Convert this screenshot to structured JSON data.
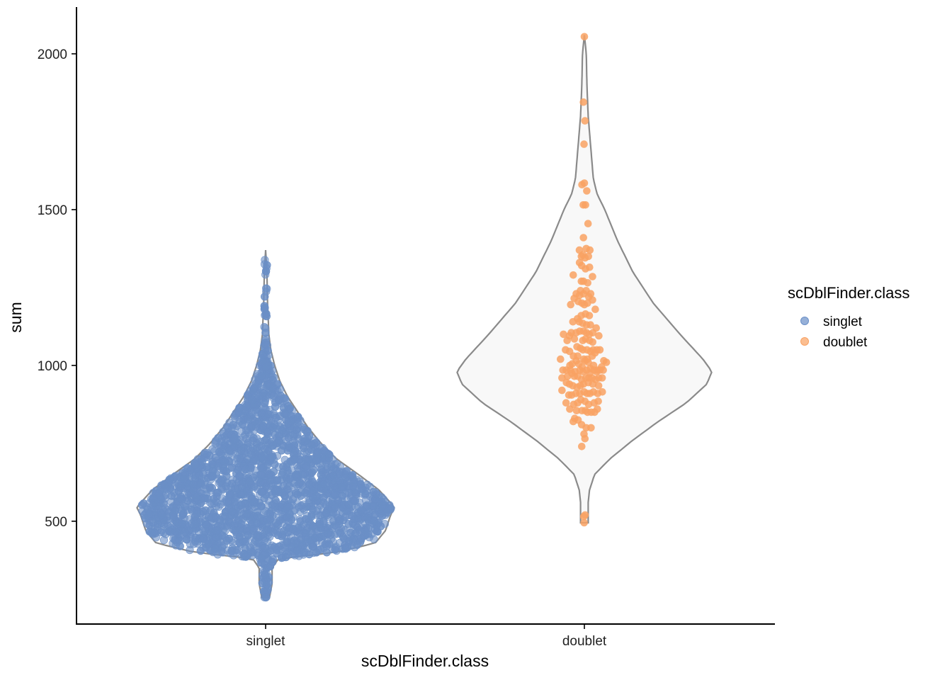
{
  "chart_data": {
    "type": "violin",
    "xlabel": "scDblFinder.class",
    "ylabel": "sum",
    "categories": [
      "singlet",
      "doublet"
    ],
    "ylim": [
      170,
      2150
    ],
    "yticks": [
      500,
      1000,
      1500,
      2000
    ],
    "grid": false,
    "legend": {
      "title": "scDblFinder.class",
      "position": "right",
      "entries": [
        {
          "label": "singlet",
          "color": "#6a8fc7"
        },
        {
          "label": "doublet",
          "color": "#f9a263"
        }
      ]
    },
    "colors": {
      "singlet": "#6a8fc7",
      "doublet": "#f9a263",
      "violin_outline": "#8a8a8a",
      "violin_fill": "#f8f8f8"
    },
    "series": [
      {
        "name": "singlet",
        "point_count_approx": 3000,
        "min": 255,
        "max": 1370,
        "mode": 545,
        "violin_profile": [
          [
            255,
            0.03
          ],
          [
            300,
            0.05
          ],
          [
            350,
            0.05
          ],
          [
            380,
            0.1
          ],
          [
            400,
            0.55
          ],
          [
            430,
            0.85
          ],
          [
            470,
            0.93
          ],
          [
            520,
            0.97
          ],
          [
            545,
            1.0
          ],
          [
            600,
            0.88
          ],
          [
            650,
            0.72
          ],
          [
            700,
            0.55
          ],
          [
            750,
            0.43
          ],
          [
            800,
            0.33
          ],
          [
            850,
            0.25
          ],
          [
            900,
            0.17
          ],
          [
            950,
            0.11
          ],
          [
            1000,
            0.07
          ],
          [
            1050,
            0.04
          ],
          [
            1100,
            0.025
          ],
          [
            1200,
            0.015
          ],
          [
            1300,
            0.01
          ],
          [
            1370,
            0.0
          ]
        ]
      },
      {
        "name": "doublet",
        "point_count_approx": 160,
        "min": 495,
        "max": 2060,
        "mode": 980,
        "violin_profile": [
          [
            495,
            0.03
          ],
          [
            520,
            0.03
          ],
          [
            560,
            0.03
          ],
          [
            600,
            0.04
          ],
          [
            650,
            0.08
          ],
          [
            700,
            0.2
          ],
          [
            760,
            0.38
          ],
          [
            820,
            0.58
          ],
          [
            880,
            0.8
          ],
          [
            940,
            0.96
          ],
          [
            980,
            1.0
          ],
          [
            1020,
            0.93
          ],
          [
            1100,
            0.75
          ],
          [
            1200,
            0.54
          ],
          [
            1300,
            0.38
          ],
          [
            1400,
            0.26
          ],
          [
            1500,
            0.16
          ],
          [
            1550,
            0.1
          ],
          [
            1600,
            0.07
          ],
          [
            1700,
            0.05
          ],
          [
            1800,
            0.03
          ],
          [
            1900,
            0.02
          ],
          [
            2000,
            0.015
          ],
          [
            2060,
            0.0
          ]
        ],
        "points": [
          [
            0.0,
            2055
          ],
          [
            -0.05,
            1845
          ],
          [
            0.03,
            1785
          ],
          [
            -0.02,
            1710
          ],
          [
            -0.13,
            1580
          ],
          [
            0.0,
            1585
          ],
          [
            0.13,
            1560
          ],
          [
            -0.06,
            1515
          ],
          [
            0.06,
            1515
          ],
          [
            0.2,
            1455
          ],
          [
            -0.05,
            1410
          ],
          [
            -0.27,
            1370
          ],
          [
            0.1,
            1375
          ],
          [
            0.3,
            1370
          ],
          [
            -0.16,
            1350
          ],
          [
            -0.08,
            1355
          ],
          [
            0.04,
            1345
          ],
          [
            0.22,
            1350
          ],
          [
            -0.26,
            1330
          ],
          [
            -0.14,
            1320
          ],
          [
            0.06,
            1310
          ],
          [
            0.28,
            1315
          ],
          [
            -0.6,
            1290
          ],
          [
            -0.16,
            1270
          ],
          [
            -0.05,
            1270
          ],
          [
            0.18,
            1265
          ],
          [
            0.44,
            1285
          ],
          [
            -0.44,
            1230
          ],
          [
            -0.21,
            1240
          ],
          [
            -0.04,
            1230
          ],
          [
            0.1,
            1240
          ],
          [
            0.34,
            1230
          ],
          [
            -0.26,
            1225
          ],
          [
            0.24,
            1220
          ],
          [
            -0.74,
            1195
          ],
          [
            -0.55,
            1215
          ],
          [
            -0.33,
            1205
          ],
          [
            -0.13,
            1200
          ],
          [
            0.0,
            1195
          ],
          [
            0.17,
            1200
          ],
          [
            0.44,
            1210
          ],
          [
            0.59,
            1180
          ],
          [
            -0.37,
            1150
          ],
          [
            -0.17,
            1160
          ],
          [
            0.06,
            1165
          ],
          [
            0.27,
            1160
          ],
          [
            -0.62,
            1140
          ],
          [
            -0.28,
            1140
          ],
          [
            -0.09,
            1135
          ],
          [
            0.12,
            1130
          ],
          [
            0.33,
            1130
          ],
          [
            -0.71,
            1105
          ],
          [
            -0.44,
            1105
          ],
          [
            -0.25,
            1110
          ],
          [
            -0.05,
            1110
          ],
          [
            0.12,
            1105
          ],
          [
            0.26,
            1100
          ],
          [
            0.46,
            1105
          ],
          [
            0.64,
            1120
          ],
          [
            -1.13,
            1100
          ],
          [
            -0.81,
            1095
          ],
          [
            -0.54,
            1085
          ],
          [
            -0.09,
            1080
          ],
          [
            0.06,
            1085
          ],
          [
            0.28,
            1080
          ],
          [
            0.45,
            1075
          ],
          [
            0.78,
            1095
          ],
          [
            -0.93,
            1080
          ],
          [
            -1.02,
            1050
          ],
          [
            -0.8,
            1045
          ],
          [
            -0.4,
            1060
          ],
          [
            -0.21,
            1055
          ],
          [
            -0.08,
            1050
          ],
          [
            0.14,
            1050
          ],
          [
            0.33,
            1045
          ],
          [
            0.48,
            1050
          ],
          [
            0.68,
            1050
          ],
          [
            -0.59,
            1030
          ],
          [
            -0.36,
            1030
          ],
          [
            -0.03,
            1020
          ],
          [
            0.16,
            1020
          ],
          [
            0.42,
            1030
          ],
          [
            0.58,
            1040
          ],
          [
            0.84,
            1050
          ],
          [
            -1.29,
            1020
          ],
          [
            -0.78,
            1000
          ],
          [
            -0.66,
            1005
          ],
          [
            -0.44,
            1015
          ],
          [
            -0.3,
            1005
          ],
          [
            -0.12,
            995
          ],
          [
            0.04,
            1015
          ],
          [
            0.21,
            1010
          ],
          [
            0.32,
            990
          ],
          [
            0.5,
            1000
          ],
          [
            0.72,
            985
          ],
          [
            0.93,
            995
          ],
          [
            1.05,
            1015
          ],
          [
            1.19,
            1010
          ],
          [
            -1.16,
            985
          ],
          [
            -0.98,
            985
          ],
          [
            -0.76,
            985
          ],
          [
            -0.5,
            980
          ],
          [
            -0.24,
            985
          ],
          [
            -0.07,
            980
          ],
          [
            0.12,
            985
          ],
          [
            0.29,
            975
          ],
          [
            0.52,
            985
          ],
          [
            0.66,
            980
          ],
          [
            0.84,
            985
          ],
          [
            1.02,
            985
          ],
          [
            -1.21,
            960
          ],
          [
            -0.91,
            965
          ],
          [
            -0.68,
            975
          ],
          [
            -0.54,
            965
          ],
          [
            -0.36,
            965
          ],
          [
            -0.15,
            955
          ],
          [
            0.08,
            960
          ],
          [
            0.24,
            960
          ],
          [
            0.41,
            960
          ],
          [
            0.6,
            955
          ],
          [
            0.78,
            960
          ],
          [
            0.96,
            960
          ],
          [
            -0.97,
            945
          ],
          [
            -0.81,
            940
          ],
          [
            -0.63,
            935
          ],
          [
            -0.4,
            930
          ],
          [
            -0.22,
            935
          ],
          [
            -0.05,
            940
          ],
          [
            0.21,
            945
          ],
          [
            0.46,
            940
          ],
          [
            0.77,
            935
          ],
          [
            -1.21,
            920
          ],
          [
            -0.84,
            905
          ],
          [
            -0.69,
            905
          ],
          [
            -0.46,
            910
          ],
          [
            -0.25,
            910
          ],
          [
            -0.01,
            915
          ],
          [
            0.15,
            910
          ],
          [
            0.3,
            910
          ],
          [
            0.49,
            915
          ],
          [
            0.72,
            910
          ],
          [
            0.97,
            915
          ],
          [
            -0.99,
            880
          ],
          [
            -0.58,
            875
          ],
          [
            -0.36,
            880
          ],
          [
            -0.19,
            890
          ],
          [
            0.03,
            885
          ],
          [
            0.23,
            875
          ],
          [
            0.53,
            880
          ],
          [
            0.75,
            885
          ],
          [
            -0.79,
            860
          ],
          [
            -0.42,
            855
          ],
          [
            -0.13,
            855
          ],
          [
            0.05,
            855
          ],
          [
            0.17,
            850
          ],
          [
            0.37,
            850
          ],
          [
            0.55,
            850
          ],
          [
            0.7,
            860
          ],
          [
            -0.52,
            830
          ],
          [
            -0.34,
            825
          ],
          [
            -0.15,
            810
          ],
          [
            0.1,
            800
          ],
          [
            -0.6,
            820
          ],
          [
            0.36,
            800
          ],
          [
            -0.02,
            780
          ],
          [
            0.03,
            765
          ],
          [
            -0.14,
            740
          ],
          [
            -0.03,
            515
          ],
          [
            0.04,
            520
          ],
          [
            -0.01,
            495
          ]
        ]
      }
    ]
  }
}
